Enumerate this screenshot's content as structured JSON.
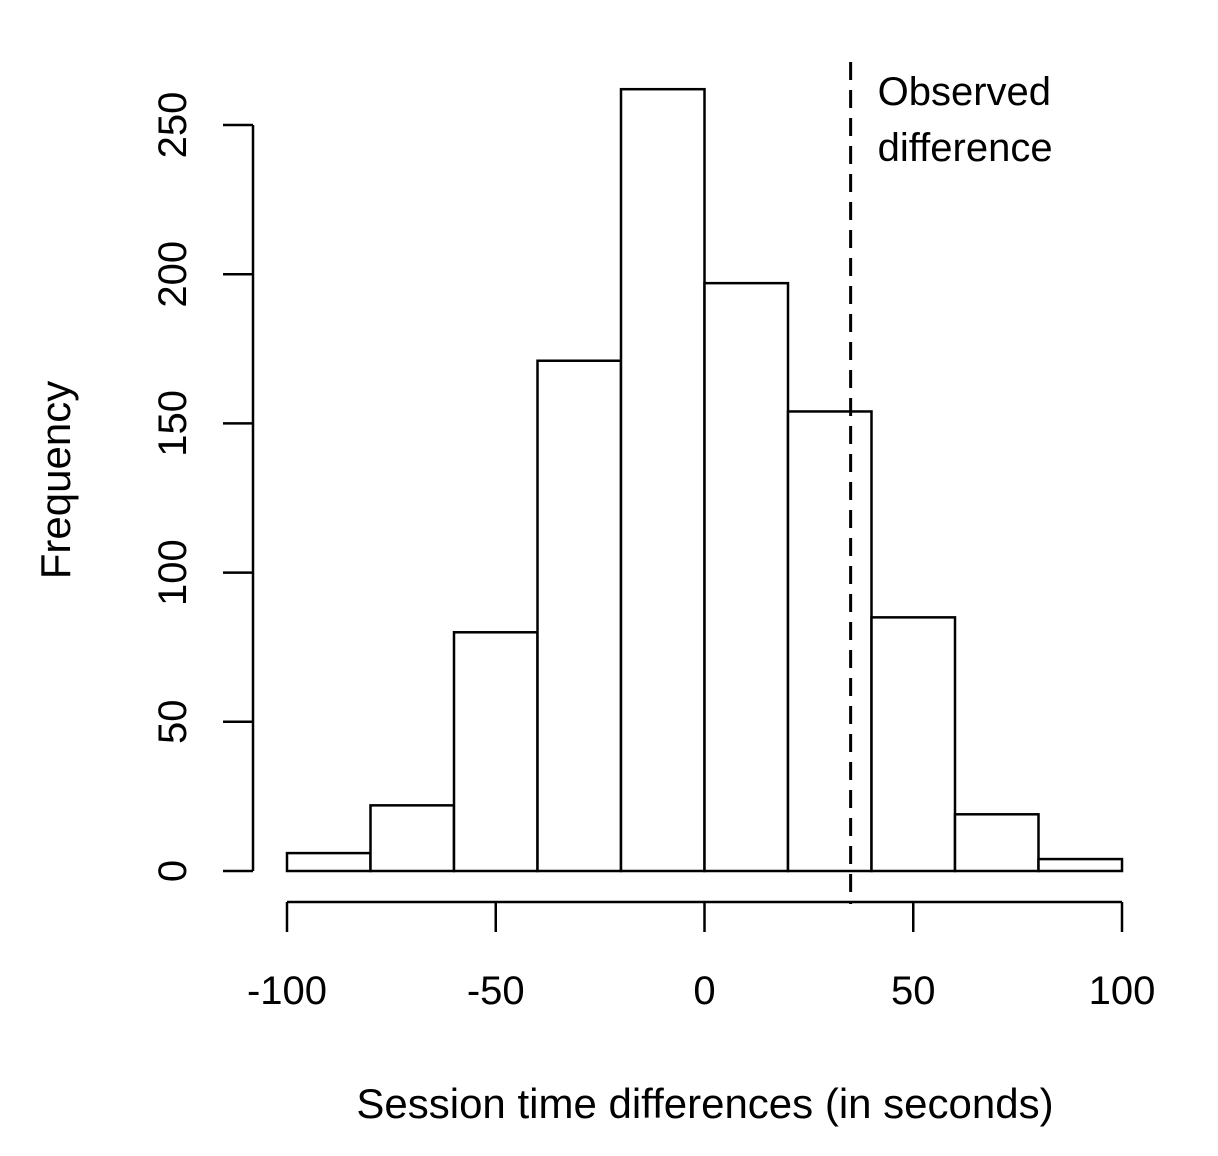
{
  "chart_data": {
    "type": "bar",
    "bins": [
      {
        "x0": -100,
        "x1": -80,
        "count": 6
      },
      {
        "x0": -80,
        "x1": -60,
        "count": 22
      },
      {
        "x0": -60,
        "x1": -40,
        "count": 80
      },
      {
        "x0": -40,
        "x1": -20,
        "count": 171
      },
      {
        "x0": -20,
        "x1": 0,
        "count": 262
      },
      {
        "x0": 0,
        "x1": 20,
        "count": 197
      },
      {
        "x0": 20,
        "x1": 40,
        "count": 154
      },
      {
        "x0": 40,
        "x1": 60,
        "count": 85
      },
      {
        "x0": 60,
        "x1": 80,
        "count": 19
      },
      {
        "x0": 80,
        "x1": 100,
        "count": 4
      }
    ],
    "xlabel": "Session time differences (in seconds)",
    "ylabel": "Frequency",
    "xlim": [
      -100,
      100
    ],
    "ylim": [
      0,
      250
    ],
    "xticks": [
      -100,
      -50,
      0,
      50,
      100
    ],
    "yticks": [
      0,
      50,
      100,
      150,
      200,
      250
    ],
    "xtick_labels": [
      "-100",
      "-50",
      "0",
      "50",
      "100"
    ],
    "ytick_labels": [
      "0",
      "50",
      "100",
      "150",
      "200",
      "250"
    ],
    "reference_line": {
      "x": 35,
      "style": "dashed",
      "label_lines": [
        "Observed",
        "difference"
      ]
    },
    "grid": false,
    "bar_fill": "#ffffff",
    "bar_stroke": "#000000"
  }
}
